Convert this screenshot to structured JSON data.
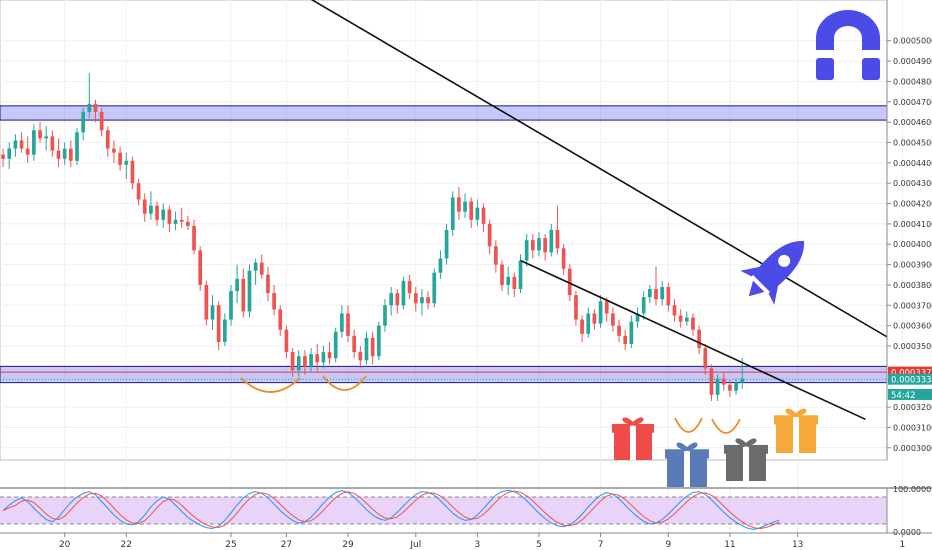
{
  "chart_data": {
    "type": "candlestick",
    "y_axis": {
      "range": [
        0.000294,
        0.00052
      ],
      "ticks": [
        "0.0005000",
        "0.0004900",
        "0.0004800",
        "0.0004700",
        "0.0004600",
        "0.0004500",
        "0.0004400",
        "0.0004300",
        "0.0004200",
        "0.0004100",
        "0.0004000",
        "0.0003900",
        "0.0003800",
        "0.0003700",
        "0.0003600",
        "0.0003500",
        "0.0003200",
        "0.0003100",
        "0.0003000"
      ],
      "tick_values": [
        0.0005,
        0.00049,
        0.00048,
        0.00047,
        0.00046,
        0.00045,
        0.00044,
        0.00043,
        0.00042,
        0.00041,
        0.0004,
        0.00039,
        0.00038,
        0.00037,
        0.00036,
        0.00035,
        0.00032,
        0.00031,
        0.0003
      ]
    },
    "x_axis": {
      "ticks": [
        "20",
        "22",
        "25",
        "27",
        "29",
        "Jul",
        "3",
        "5",
        "7",
        "9",
        "11",
        "13",
        "1"
      ],
      "tick_bar_index": [
        10,
        20,
        37,
        46,
        56,
        67,
        77,
        87,
        97,
        108,
        118,
        129,
        146
      ],
      "bar_count": 144
    },
    "price_labels": [
      {
        "text": "0.0003372",
        "value": 0.0003372,
        "color": "#e53935"
      },
      {
        "text": "0.0003337",
        "value": 0.0003337,
        "color": "#26a69a"
      },
      {
        "text": "54:42",
        "value": 0.0003262,
        "color": "#26a69a"
      }
    ],
    "candles": [
      [
        0.000444,
        0.000447,
        0.000438,
        0.000442
      ],
      [
        0.000442,
        0.00045,
        0.000437,
        0.000447
      ],
      [
        0.000447,
        0.000454,
        0.000443,
        0.000451
      ],
      [
        0.000451,
        0.000455,
        0.000445,
        0.000447
      ],
      [
        0.000447,
        0.000453,
        0.00044,
        0.000444
      ],
      [
        0.000444,
        0.000459,
        0.000441,
        0.000456
      ],
      [
        0.000456,
        0.00046,
        0.00045,
        0.000452
      ],
      [
        0.000452,
        0.000458,
        0.000446,
        0.000453
      ],
      [
        0.000453,
        0.000456,
        0.000443,
        0.000446
      ],
      [
        0.000446,
        0.000452,
        0.000438,
        0.000442
      ],
      [
        0.000442,
        0.00045,
        0.000439,
        0.000447
      ],
      [
        0.000447,
        0.000451,
        0.000438,
        0.000441
      ],
      [
        0.000441,
        0.000457,
        0.000439,
        0.000455
      ],
      [
        0.000455,
        0.000467,
        0.000451,
        0.000465
      ],
      [
        0.000465,
        0.000484,
        0.000462,
        0.000469
      ],
      [
        0.000469,
        0.000471,
        0.00046,
        0.000465
      ],
      [
        0.000465,
        0.000467,
        0.000453,
        0.000456
      ],
      [
        0.000456,
        0.000458,
        0.000443,
        0.000447
      ],
      [
        0.000447,
        0.000451,
        0.00044,
        0.000445
      ],
      [
        0.000445,
        0.000448,
        0.000436,
        0.000439
      ],
      [
        0.000439,
        0.000445,
        0.000432,
        0.000441
      ],
      [
        0.000441,
        0.000443,
        0.000427,
        0.00043
      ],
      [
        0.00043,
        0.000432,
        0.000419,
        0.000422
      ],
      [
        0.000422,
        0.000425,
        0.000411,
        0.000415
      ],
      [
        0.000415,
        0.000426,
        0.000412,
        0.000419
      ],
      [
        0.000419,
        0.000421,
        0.000409,
        0.000412
      ],
      [
        0.000412,
        0.00042,
        0.000408,
        0.000417
      ],
      [
        0.000417,
        0.000419,
        0.000406,
        0.00041
      ],
      [
        0.00041,
        0.000416,
        0.000407,
        0.000412
      ],
      [
        0.000412,
        0.000418,
        0.000408,
        0.000411
      ],
      [
        0.000411,
        0.000414,
        0.000407,
        0.000409
      ],
      [
        0.000409,
        0.000412,
        0.000395,
        0.000397
      ],
      [
        0.000397,
        0.000399,
        0.000377,
        0.00038
      ],
      [
        0.00038,
        0.000382,
        0.00036,
        0.000363
      ],
      [
        0.000363,
        0.000375,
        0.000358,
        0.00037
      ],
      [
        0.00037,
        0.000372,
        0.000348,
        0.000352
      ],
      [
        0.000352,
        0.000366,
        0.00035,
        0.000363
      ],
      [
        0.000363,
        0.00038,
        0.00036,
        0.000377
      ],
      [
        0.000377,
        0.00039,
        0.000371,
        0.000383
      ],
      [
        0.000383,
        0.000388,
        0.000364,
        0.000367
      ],
      [
        0.000367,
        0.00039,
        0.000364,
        0.000387
      ],
      [
        0.000387,
        0.000393,
        0.00038,
        0.000391
      ],
      [
        0.000391,
        0.000395,
        0.000383,
        0.000385
      ],
      [
        0.000385,
        0.000389,
        0.000372,
        0.000376
      ],
      [
        0.000376,
        0.00038,
        0.000365,
        0.000368
      ],
      [
        0.000368,
        0.00037,
        0.000355,
        0.000358
      ],
      [
        0.000358,
        0.00036,
        0.000344,
        0.000347
      ],
      [
        0.000347,
        0.000349,
        0.000335,
        0.000338
      ],
      [
        0.000338,
        0.000348,
        0.000335,
        0.000345
      ],
      [
        0.000345,
        0.000348,
        0.000336,
        0.00034
      ],
      [
        0.00034,
        0.000349,
        0.000337,
        0.000346
      ],
      [
        0.000346,
        0.000351,
        0.000337,
        0.000342
      ],
      [
        0.000342,
        0.00035,
        0.000339,
        0.000347
      ],
      [
        0.000347,
        0.000352,
        0.000341,
        0.000344
      ],
      [
        0.000344,
        0.000359,
        0.000342,
        0.000357
      ],
      [
        0.000357,
        0.00037,
        0.000354,
        0.000366
      ],
      [
        0.000366,
        0.00037,
        0.000352,
        0.000355
      ],
      [
        0.000355,
        0.000358,
        0.000344,
        0.000347
      ],
      [
        0.000347,
        0.00035,
        0.000339,
        0.000343
      ],
      [
        0.000343,
        0.000357,
        0.000341,
        0.000354
      ],
      [
        0.000354,
        0.000357,
        0.000341,
        0.000345
      ],
      [
        0.000345,
        0.000362,
        0.000343,
        0.00036
      ],
      [
        0.00036,
        0.000373,
        0.000357,
        0.00037
      ],
      [
        0.00037,
        0.000379,
        0.000365,
        0.000376
      ],
      [
        0.000376,
        0.000378,
        0.000366,
        0.00037
      ],
      [
        0.00037,
        0.000384,
        0.000368,
        0.000382
      ],
      [
        0.000382,
        0.000385,
        0.000373,
        0.000376
      ],
      [
        0.000376,
        0.000379,
        0.000367,
        0.000371
      ],
      [
        0.000371,
        0.000378,
        0.000365,
        0.000374
      ],
      [
        0.000374,
        0.000377,
        0.000368,
        0.000371
      ],
      [
        0.000371,
        0.000388,
        0.000369,
        0.000386
      ],
      [
        0.000386,
        0.000397,
        0.000383,
        0.000393
      ],
      [
        0.000393,
        0.00041,
        0.00039,
        0.000407
      ],
      [
        0.000407,
        0.000426,
        0.000404,
        0.000423
      ],
      [
        0.000423,
        0.000428,
        0.000412,
        0.000416
      ],
      [
        0.000416,
        0.000425,
        0.000413,
        0.000421
      ],
      [
        0.000421,
        0.000423,
        0.000408,
        0.000412
      ],
      [
        0.000412,
        0.000422,
        0.000409,
        0.000418
      ],
      [
        0.000418,
        0.00042,
        0.000406,
        0.00041
      ],
      [
        0.00041,
        0.000412,
        0.000395,
        0.000399
      ],
      [
        0.000399,
        0.000402,
        0.000386,
        0.00039
      ],
      [
        0.00039,
        0.000392,
        0.000377,
        0.00038
      ],
      [
        0.00038,
        0.000389,
        0.000375,
        0.000384
      ],
      [
        0.000384,
        0.000386,
        0.000374,
        0.000378
      ],
      [
        0.000378,
        0.000395,
        0.000376,
        0.000392
      ],
      [
        0.000392,
        0.000405,
        0.000389,
        0.000402
      ],
      [
        0.000402,
        0.000405,
        0.000393,
        0.000397
      ],
      [
        0.000397,
        0.000406,
        0.000394,
        0.000403
      ],
      [
        0.000403,
        0.000405,
        0.000392,
        0.000396
      ],
      [
        0.000396,
        0.00041,
        0.000394,
        0.000407
      ],
      [
        0.000407,
        0.000419,
        0.000395,
        0.000398
      ],
      [
        0.000398,
        0.0004,
        0.000385,
        0.000388
      ],
      [
        0.000388,
        0.00039,
        0.000372,
        0.000375
      ],
      [
        0.000375,
        0.000377,
        0.00036,
        0.000363
      ],
      [
        0.000363,
        0.000365,
        0.000352,
        0.000356
      ],
      [
        0.000356,
        0.000369,
        0.000354,
        0.000366
      ],
      [
        0.000366,
        0.000368,
        0.000358,
        0.000361
      ],
      [
        0.000361,
        0.000375,
        0.000359,
        0.000372
      ],
      [
        0.000372,
        0.000374,
        0.000362,
        0.000366
      ],
      [
        0.000366,
        0.000369,
        0.000357,
        0.00036
      ],
      [
        0.00036,
        0.000363,
        0.000352,
        0.000355
      ],
      [
        0.000355,
        0.000358,
        0.000348,
        0.000351
      ],
      [
        0.000351,
        0.000365,
        0.000349,
        0.000362
      ],
      [
        0.000362,
        0.000369,
        0.000359,
        0.000366
      ],
      [
        0.000366,
        0.000377,
        0.000363,
        0.000374
      ],
      [
        0.000374,
        0.00038,
        0.000371,
        0.000378
      ],
      [
        0.000378,
        0.000389,
        0.00037,
        0.000373
      ],
      [
        0.000373,
        0.000382,
        0.00037,
        0.000379
      ],
      [
        0.000379,
        0.000381,
        0.000367,
        0.00037
      ],
      [
        0.00037,
        0.000373,
        0.000362,
        0.000365
      ],
      [
        0.000365,
        0.000368,
        0.000359,
        0.000362
      ],
      [
        0.000362,
        0.000367,
        0.00036,
        0.000364
      ],
      [
        0.000364,
        0.000366,
        0.000355,
        0.000358
      ],
      [
        0.000358,
        0.00036,
        0.000346,
        0.000349
      ],
      [
        0.000349,
        0.000351,
        0.000336,
        0.000339
      ],
      [
        0.000339,
        0.000341,
        0.000323,
        0.000326
      ],
      [
        0.000326,
        0.000336,
        0.000323,
        0.000334
      ],
      [
        0.000334,
        0.000337,
        0.000328,
        0.000331
      ],
      [
        0.000331,
        0.000333,
        0.000325,
        0.000328
      ],
      [
        0.000328,
        0.000334,
        0.000326,
        0.000332
      ],
      [
        0.000332,
        0.000344,
        0.000329,
        0.000334
      ]
    ],
    "stoch_rsi": {
      "ticks": [
        "100.0000",
        "0.0000"
      ],
      "k": [
        50,
        62,
        72,
        78,
        70,
        55,
        42,
        30,
        25,
        35,
        52,
        68,
        80,
        88,
        92,
        85,
        70,
        55,
        40,
        28,
        20,
        18,
        25,
        40,
        58,
        72,
        80,
        75,
        62,
        48,
        35,
        25,
        18,
        12,
        10,
        15,
        28,
        45,
        62,
        78,
        88,
        92,
        88,
        78,
        64,
        50,
        38,
        28,
        22,
        25,
        35,
        50,
        66,
        80,
        90,
        94,
        90,
        80,
        66,
        52,
        40,
        32,
        28,
        34,
        46,
        60,
        74,
        86,
        92,
        90,
        84,
        72,
        58,
        44,
        34,
        28,
        30,
        40,
        54,
        70,
        84,
        92,
        95,
        92,
        84,
        72,
        58,
        44,
        32,
        22,
        16,
        14,
        18,
        28,
        42,
        58,
        72,
        84,
        90,
        86,
        76,
        62,
        48,
        36,
        26,
        20,
        22,
        30,
        42,
        56,
        70,
        82,
        90,
        92,
        86,
        74,
        60,
        46,
        34,
        24,
        16,
        10,
        8,
        12,
        18,
        24,
        28
      ]
    },
    "horizontal_zones": [
      {
        "from": 0.000461,
        "to": 0.000468,
        "color": "#7c7cf0"
      },
      {
        "from": 0.000332,
        "to": 0.00034,
        "color": "#7c7cf0"
      }
    ],
    "trendlines": [
      {
        "points": [
          [
            44,
            0.000531
          ],
          [
            159,
            0.000327
          ]
        ]
      },
      {
        "points": [
          [
            84,
            0.000392
          ],
          [
            140,
            0.000314
          ]
        ]
      }
    ],
    "annotations": [
      "logo-arch",
      "rocket",
      "gift-red",
      "gift-blue",
      "gift-gray",
      "gift-orange",
      "smile-curves"
    ]
  },
  "colors": {
    "up": "#26a69a",
    "down": "#ef5350",
    "zone_fill": "#5f5ff0",
    "stoch_k": "#2196f3",
    "stoch_d": "#ef5350",
    "stoch_band": "#e1c4f7",
    "logo": "#4b4be8"
  }
}
